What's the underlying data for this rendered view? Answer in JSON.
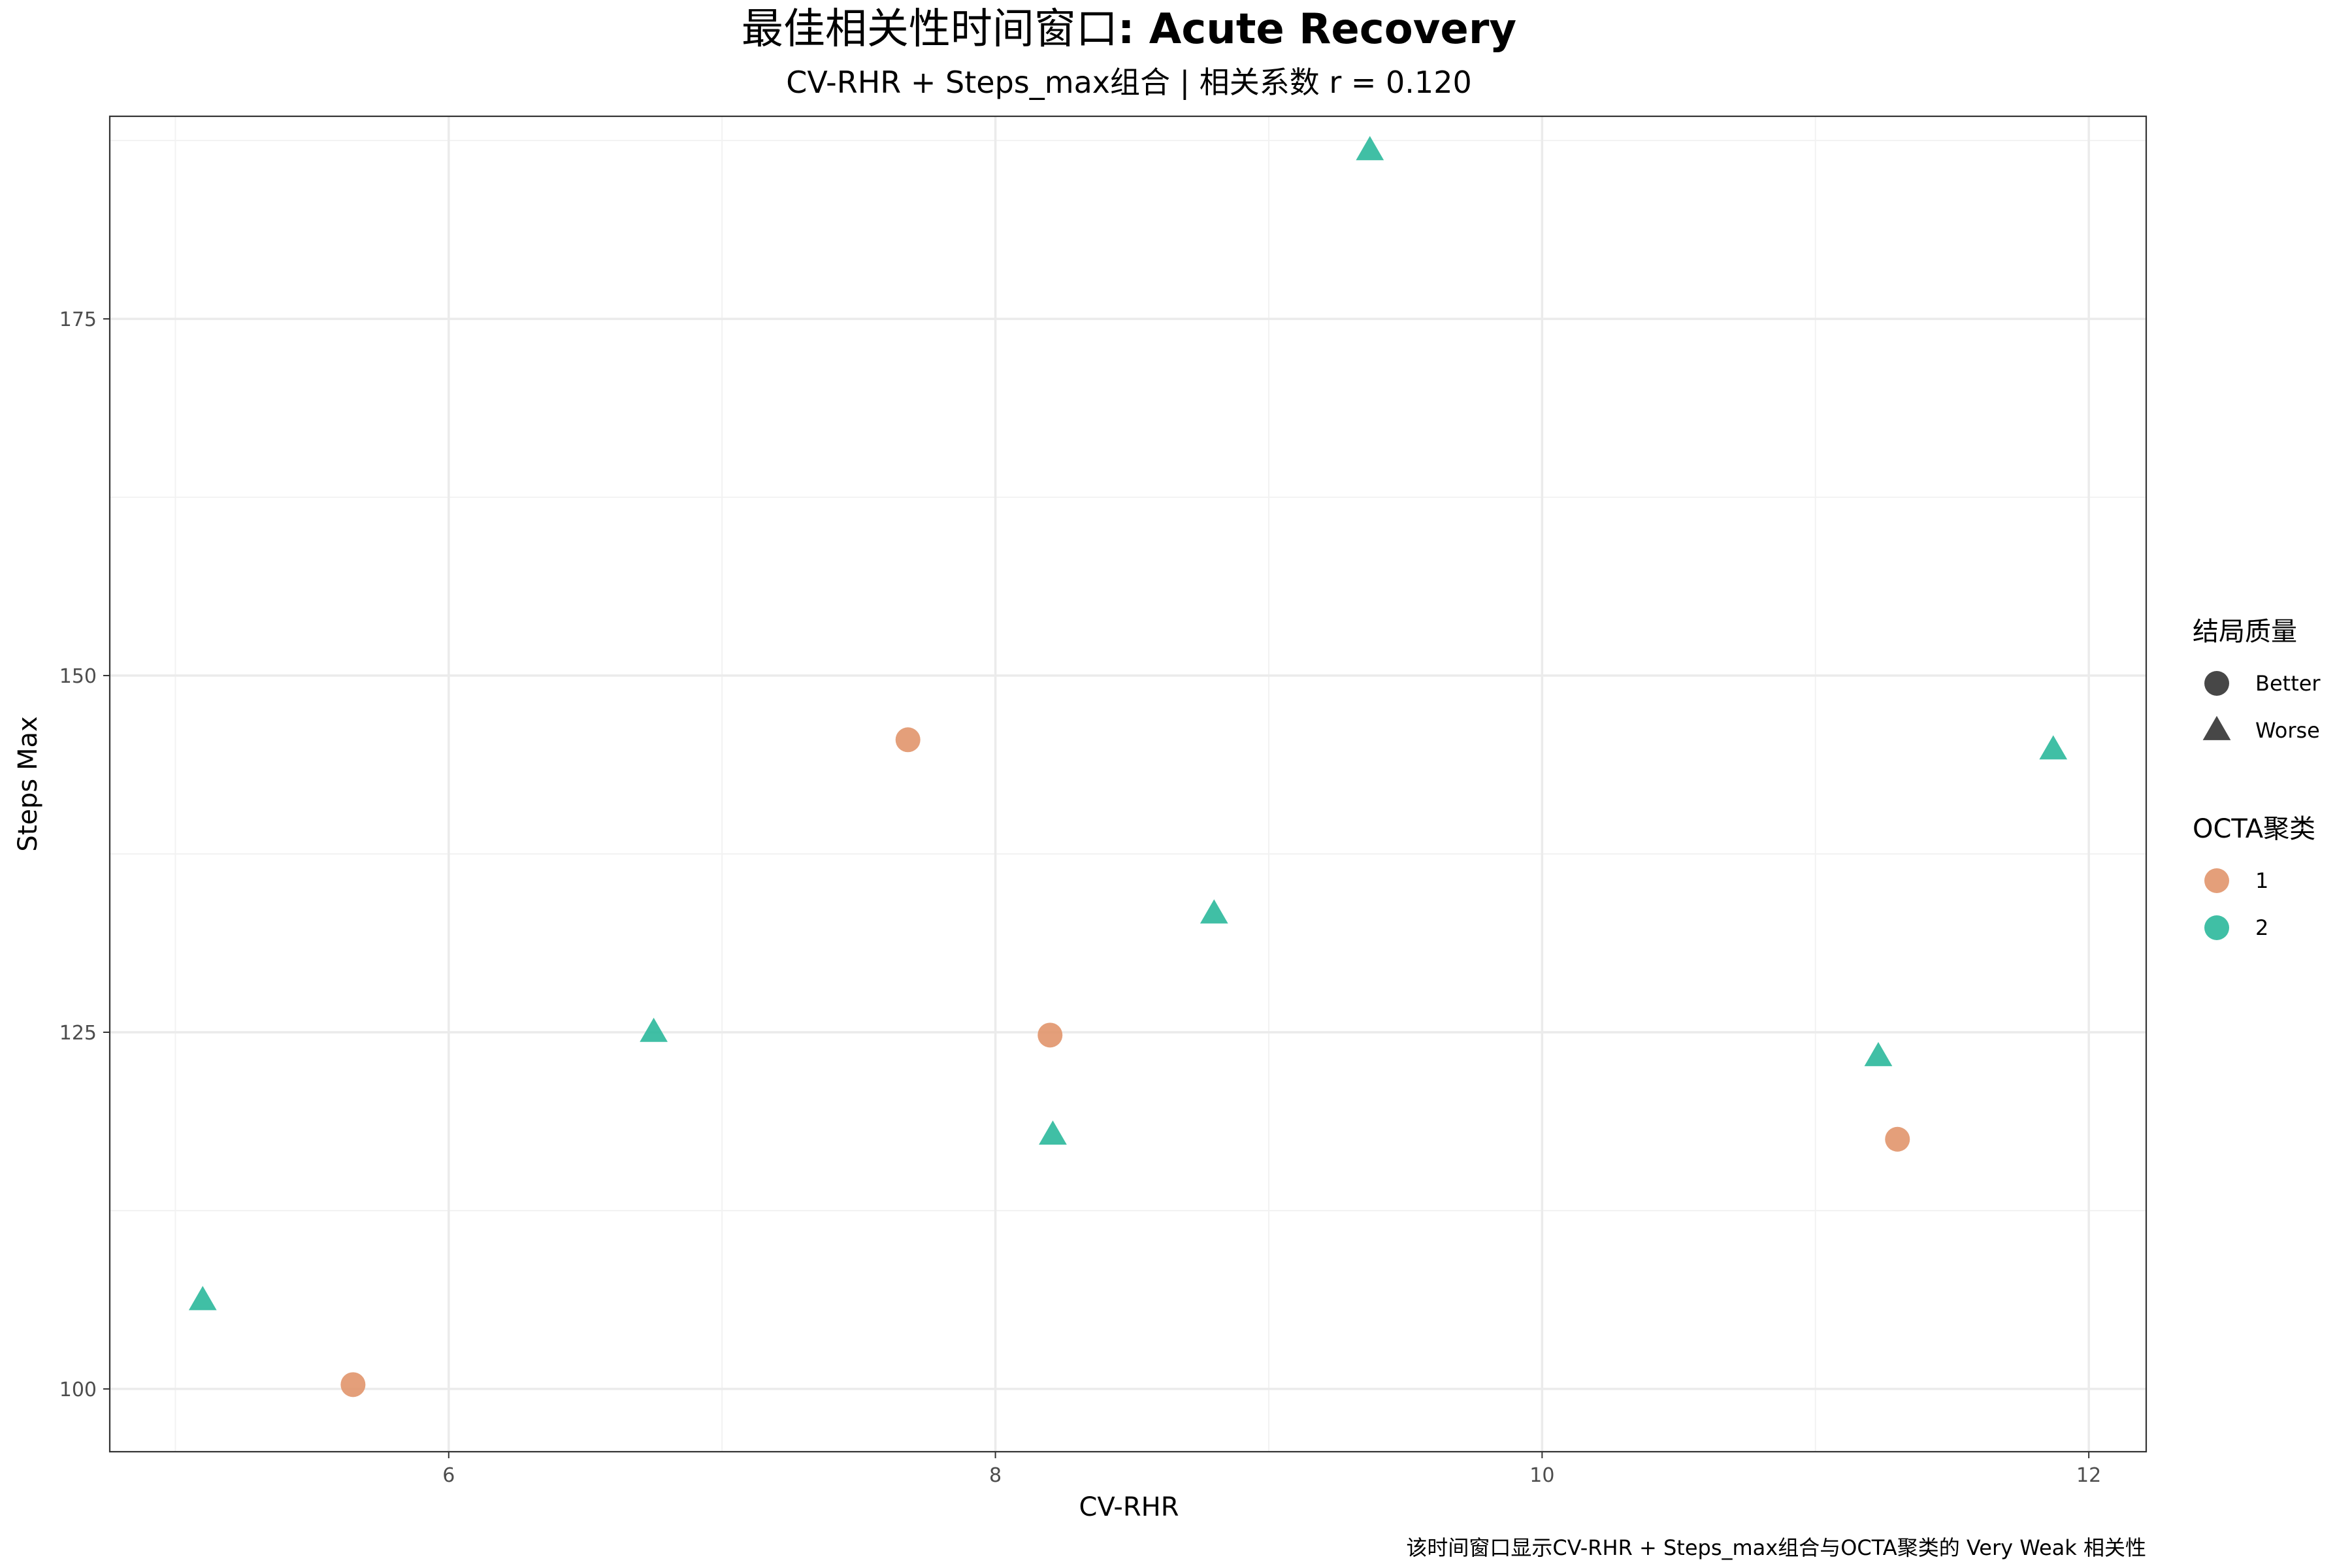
{
  "chart_data": {
    "type": "scatter",
    "title_cn": "最佳相关性时间窗口",
    "title_bold": ": Acute Recovery",
    "subtitle": "CV-RHR + Steps_max组合 | 相关系数 r = 0.120",
    "xlabel": "CV-RHR",
    "ylabel": "Steps Max",
    "caption": "该时间窗口显示CV-RHR + Steps_max组合与OCTA聚类的 Very Weak 相关性",
    "xlim": [
      4.76,
      12.21
    ],
    "ylim": [
      95.6,
      189.2
    ],
    "x_ticks": [
      6,
      8,
      10,
      12
    ],
    "y_ticks": [
      100,
      125,
      150,
      175
    ],
    "grid": true,
    "shape_legend": {
      "title": "结局质量",
      "items": [
        {
          "label": "Better",
          "shape": "circle"
        },
        {
          "label": "Worse",
          "shape": "triangle"
        }
      ]
    },
    "color_legend": {
      "title": "OCTA聚类",
      "items": [
        {
          "label": "1",
          "color": "#E1956C"
        },
        {
          "label": "2",
          "color": "#2BB89B"
        }
      ]
    },
    "points": [
      {
        "x": 5.65,
        "y": 100.3,
        "cluster": "1",
        "outcome": "Better"
      },
      {
        "x": 7.68,
        "y": 145.5,
        "cluster": "1",
        "outcome": "Better"
      },
      {
        "x": 8.2,
        "y": 124.8,
        "cluster": "1",
        "outcome": "Better"
      },
      {
        "x": 11.3,
        "y": 117.5,
        "cluster": "1",
        "outcome": "Better"
      },
      {
        "x": 5.1,
        "y": 106.2,
        "cluster": "2",
        "outcome": "Worse"
      },
      {
        "x": 6.75,
        "y": 125.0,
        "cluster": "2",
        "outcome": "Worse"
      },
      {
        "x": 8.21,
        "y": 117.8,
        "cluster": "2",
        "outcome": "Worse"
      },
      {
        "x": 8.8,
        "y": 133.3,
        "cluster": "2",
        "outcome": "Worse"
      },
      {
        "x": 9.37,
        "y": 186.8,
        "cluster": "2",
        "outcome": "Worse"
      },
      {
        "x": 11.23,
        "y": 123.3,
        "cluster": "2",
        "outcome": "Worse"
      },
      {
        "x": 11.87,
        "y": 144.8,
        "cluster": "2",
        "outcome": "Worse"
      }
    ]
  }
}
